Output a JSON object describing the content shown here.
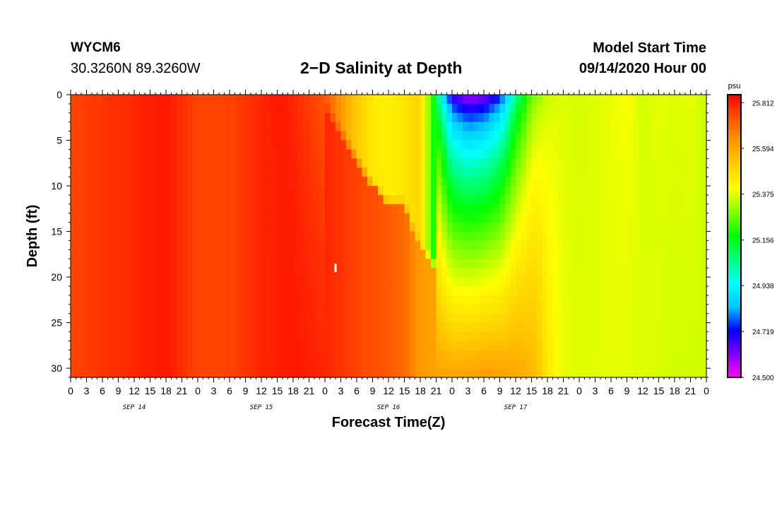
{
  "header": {
    "station": "WYCM6",
    "coordinates": "30.3260N 89.3260W",
    "title": "2−D Salinity at Depth",
    "model_start_label": "Model Start Time",
    "model_start_value": "09/14/2020 Hour 00"
  },
  "chart_data": {
    "type": "heatmap",
    "title": "2−D Salinity at Depth",
    "xlabel": "Forecast Time(Z)",
    "ylabel": "Depth (ft)",
    "x_tick_labels": [
      "0",
      "3",
      "6",
      "9",
      "12",
      "15",
      "18",
      "21",
      "0",
      "3",
      "6",
      "9",
      "12",
      "15",
      "18",
      "21",
      "0",
      "3",
      "6",
      "9",
      "12",
      "15",
      "18",
      "21",
      "0",
      "3",
      "6",
      "9",
      "12",
      "15",
      "18",
      "21",
      "0",
      "3",
      "6",
      "9",
      "12",
      "15",
      "18",
      "21",
      "0"
    ],
    "day_labels": [
      "SEP 14",
      "SEP 15",
      "SEP 16",
      "SEP 17"
    ],
    "xlim_hours": [
      0,
      120
    ],
    "y_ticks": [
      0,
      5,
      10,
      15,
      20,
      25,
      30
    ],
    "ylim": [
      0,
      31
    ],
    "y_inverted": true,
    "grid": false,
    "colorbar": {
      "unit": "psu",
      "ticks": [
        "25.812",
        "25.594",
        "25.375",
        "25.156",
        "24.938",
        "24.719",
        "24.500"
      ],
      "range": [
        24.5,
        25.85
      ],
      "placement": "right",
      "colors": [
        "#ff00ff",
        "#8000ff",
        "#0000ff",
        "#00c8ff",
        "#00ffff",
        "#00ff80",
        "#00ff00",
        "#80ff00",
        "#ffff00",
        "#ffd000",
        "#ff9900",
        "#ff5500",
        "#ff0000"
      ]
    },
    "surface_profile": {
      "hours": [
        0,
        12,
        18,
        24,
        30,
        36,
        40,
        48,
        51,
        54,
        57,
        60,
        63,
        66,
        69,
        72,
        75,
        78,
        81,
        84,
        87,
        90,
        93,
        96,
        99,
        102,
        105,
        108,
        111,
        114,
        117,
        120
      ],
      "salinity": [
        25.76,
        25.8,
        25.82,
        25.76,
        25.76,
        25.8,
        25.82,
        25.73,
        25.6,
        25.48,
        25.4,
        25.38,
        25.42,
        25.48,
        25.05,
        24.62,
        24.52,
        24.55,
        24.68,
        25.0,
        25.25,
        25.35,
        25.37,
        25.36,
        25.37,
        25.38,
        25.4,
        25.36,
        25.38,
        25.37,
        25.38,
        25.35
      ]
    },
    "bottom_profile": {
      "hours": [
        0,
        12,
        18,
        24,
        30,
        36,
        42,
        48,
        54,
        60,
        63,
        66,
        72,
        78,
        84,
        88,
        90,
        93,
        96,
        102,
        108,
        114,
        120
      ],
      "salinity": [
        25.76,
        25.8,
        25.82,
        25.76,
        25.76,
        25.8,
        25.82,
        25.8,
        25.76,
        25.73,
        25.7,
        25.62,
        25.6,
        25.62,
        25.6,
        25.55,
        25.45,
        25.38,
        25.37,
        25.38,
        25.37,
        25.36,
        25.36
      ]
    },
    "transition_depth": {
      "hours": [
        48,
        51,
        54,
        57,
        60,
        63,
        66,
        69
      ],
      "depth_ft": [
        0,
        3,
        6,
        9,
        11,
        11,
        16,
        18
      ]
    },
    "marker": {
      "hour": 50,
      "depth_ft": 19
    }
  }
}
